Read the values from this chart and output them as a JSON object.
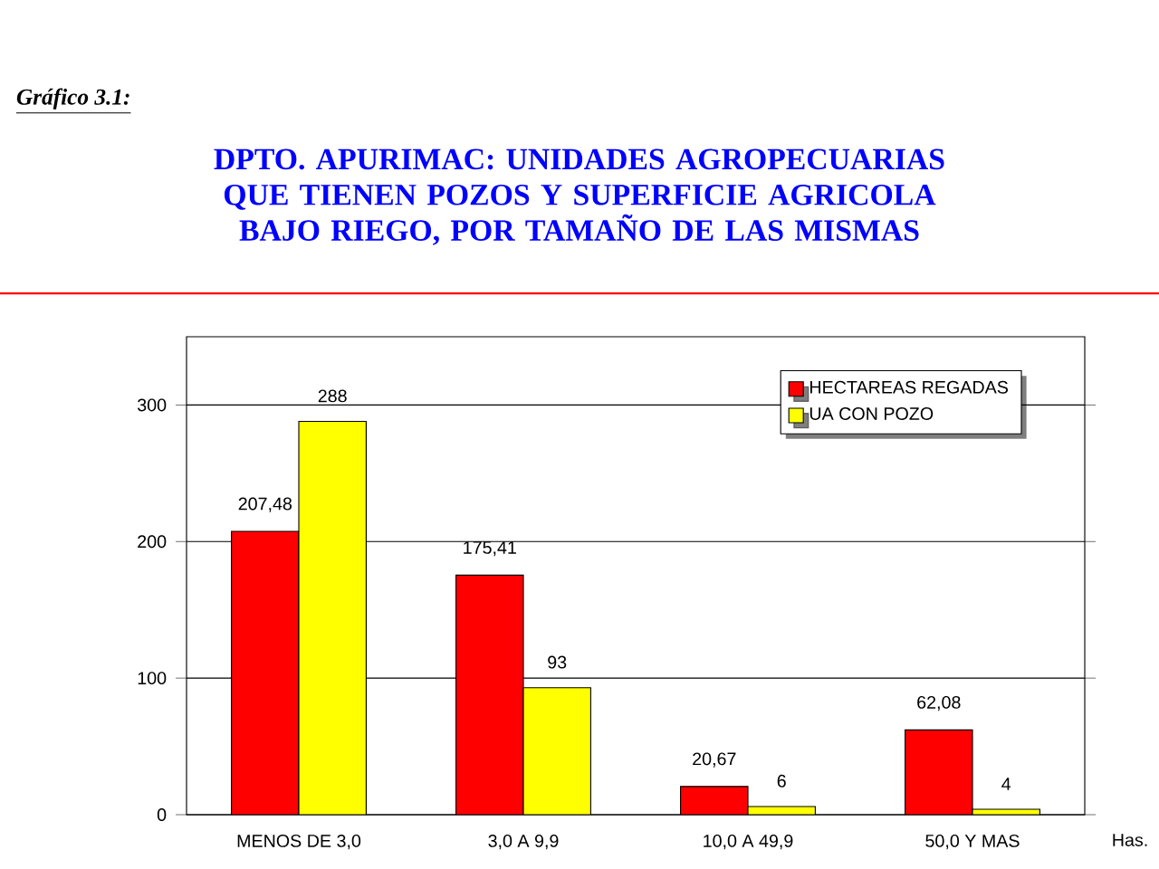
{
  "chart_data": {
    "type": "bar",
    "title": "DPTO. APURIMAC: UNIDADES AGROPECUARIAS QUE TIENEN POZOS Y SUPERFICIE AGRICOLA BAJO RIEGO, POR TAMAÑO DE LAS MISMAS",
    "xlabel": "Has.",
    "annotations": [
      "Gráfico 3.1:"
    ],
    "categories": [
      "MENOS DE 3,0",
      "3,0 A 9,9",
      "10,0 A 49,9",
      "50,0 Y MAS"
    ],
    "series": [
      {
        "name": "HECTAREAS REGADAS",
        "color": "#ff0000",
        "values": [
          207.48,
          175.41,
          20.67,
          62.08
        ],
        "value_labels": [
          "207,48",
          "175,41",
          "20,67",
          "62,08"
        ]
      },
      {
        "name": "UA CON POZO",
        "color": "#ffff00",
        "values": [
          288,
          93,
          6,
          4
        ],
        "value_labels": [
          "288",
          "93",
          "6",
          "4"
        ]
      }
    ],
    "ylim": [
      0,
      350
    ],
    "yticks": [
      0,
      100,
      200,
      300
    ],
    "grid": "y",
    "legend": "top right"
  }
}
